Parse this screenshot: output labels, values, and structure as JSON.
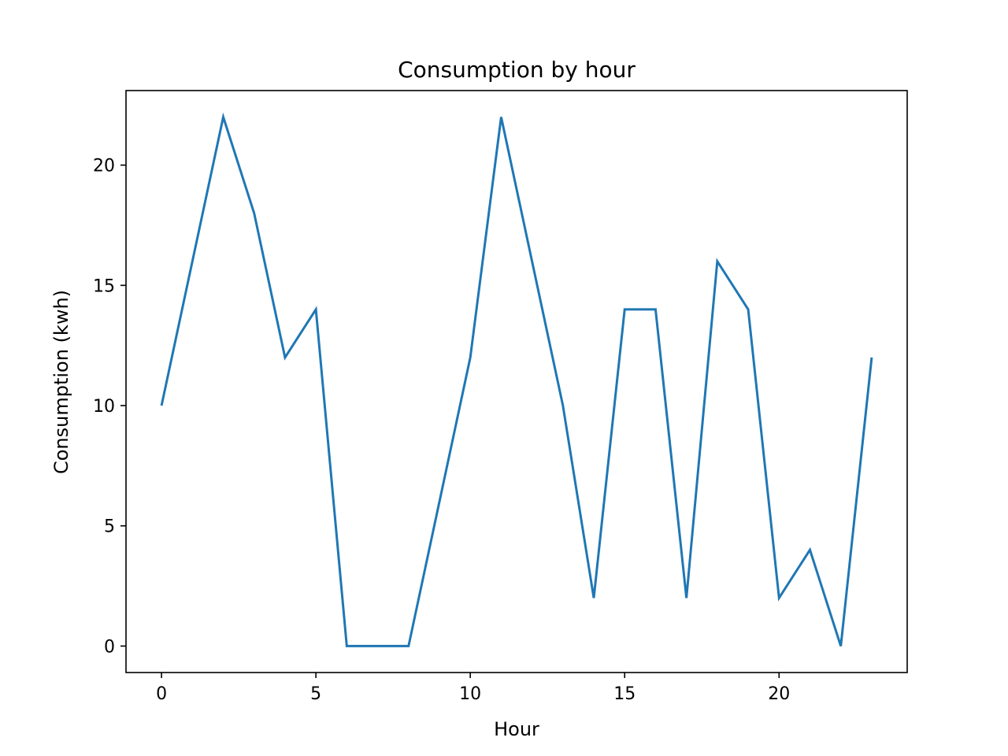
{
  "chart_data": {
    "type": "line",
    "title": "Consumption by hour",
    "xlabel": "Hour",
    "ylabel": "Consumption (kwh)",
    "x": [
      0,
      1,
      2,
      3,
      4,
      5,
      6,
      7,
      8,
      9,
      10,
      11,
      12,
      13,
      14,
      15,
      16,
      17,
      18,
      19,
      20,
      21,
      22,
      23
    ],
    "series": [
      {
        "values": [
          10,
          16,
          22,
          18,
          12,
          14,
          0,
          0,
          0,
          6,
          12,
          22,
          16,
          10,
          2,
          14,
          14,
          2,
          16,
          14,
          2,
          4,
          0,
          12
        ],
        "color": "#1f77b4"
      }
    ],
    "xlim": [
      -1.15,
      24.15
    ],
    "ylim": [
      -1.1,
      23.1
    ],
    "xticks": [
      0,
      5,
      10,
      15,
      20
    ],
    "xtick_labels": [
      "0",
      "5",
      "10",
      "15",
      "20"
    ],
    "yticks": [
      0,
      5,
      10,
      15,
      20
    ],
    "ytick_labels": [
      "0",
      "5",
      "10",
      "15",
      "20"
    ],
    "grid": false,
    "legend": false
  }
}
